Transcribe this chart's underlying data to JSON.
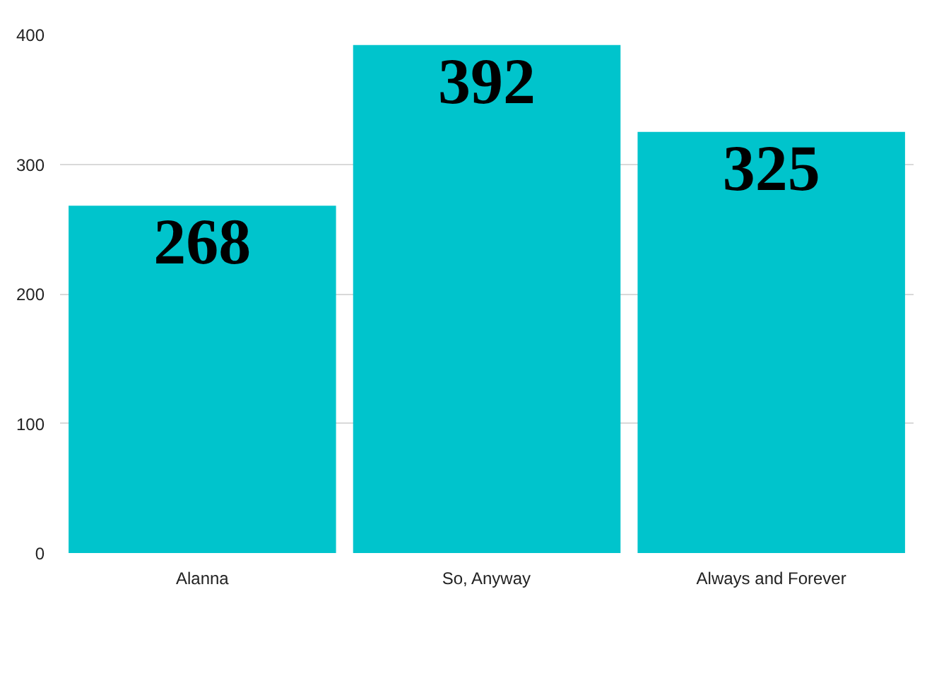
{
  "chart_data": {
    "type": "bar",
    "categories": [
      "Alanna",
      "So, Anyway",
      "Always and Forever"
    ],
    "values": [
      268,
      392,
      325
    ],
    "color": "#00c4cc",
    "ylim": [
      0,
      400
    ],
    "yticks": [
      0,
      100,
      200,
      300,
      400
    ],
    "grid": "y",
    "data_labels": true
  }
}
